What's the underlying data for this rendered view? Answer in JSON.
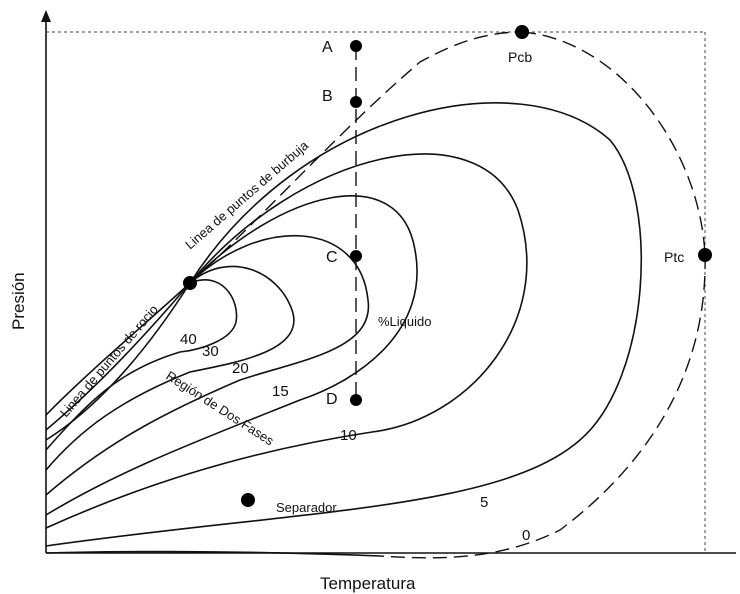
{
  "axes": {
    "x_label": "Temperatura",
    "y_label": "Presión"
  },
  "points": {
    "A": "A",
    "B": "B",
    "C": "C",
    "D": "D",
    "pcb": "Pcb",
    "ptc": "Ptc",
    "separador": "Separador"
  },
  "curve_lines": {
    "bubble_point_line": "Linea de puntos de burbuja",
    "dew_point_line": "Linea de puntos de rocio",
    "two_phase_region": "Región de Dos Fases",
    "liquid_percent": "%Liquido"
  },
  "quality_labels": {
    "q40": "40",
    "q30": "30",
    "q20": "20",
    "q15": "15",
    "q10": "10",
    "q5": "5",
    "q0": "0"
  },
  "colors": {
    "ink": "#111111",
    "background": "#ffffff"
  }
}
